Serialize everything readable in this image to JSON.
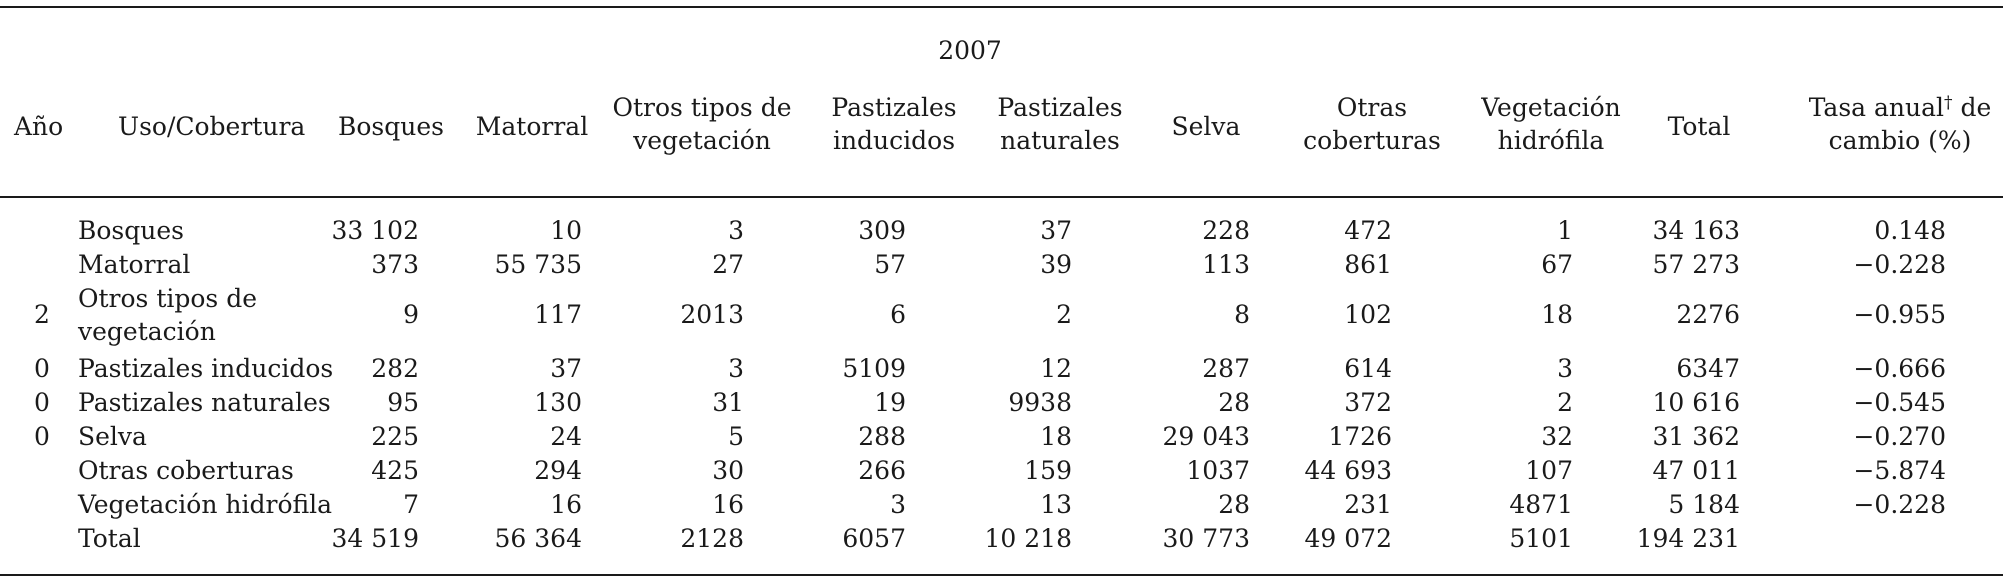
{
  "year_header": "2007",
  "header": {
    "ano": "Año",
    "uso": "Uso/Cobertura",
    "cols": [
      [
        "Bosques",
        ""
      ],
      [
        "Matorral",
        ""
      ],
      [
        "Otros tipos de",
        "vegetación"
      ],
      [
        "Pastizales",
        "inducidos"
      ],
      [
        "Pastizales",
        "naturales"
      ],
      [
        "Selva",
        ""
      ],
      [
        "Otras",
        "coberturas"
      ],
      [
        "Vegetación",
        "hidrófila"
      ],
      [
        "Total",
        ""
      ]
    ],
    "tasa_line1": "Tasa anual",
    "tasa_dagger": "†",
    "tasa_line1_suffix": " de",
    "tasa_line2": "cambio (%)"
  },
  "year_digits": [
    "2",
    "0",
    "0",
    "0"
  ],
  "rows": [
    {
      "label": [
        "Bosques"
      ],
      "values": [
        "33 102",
        "10",
        "3",
        "309",
        "37",
        "228",
        "472",
        "1",
        "34 163",
        "0.148"
      ]
    },
    {
      "label": [
        "Matorral"
      ],
      "values": [
        "373",
        "55 735",
        "27",
        "57",
        "39",
        "113",
        "861",
        "67",
        "57 273",
        "−0.228"
      ]
    },
    {
      "label": [
        "Otros tipos de",
        "vegetación"
      ],
      "values": [
        "9",
        "117",
        "2013",
        "6",
        "2",
        "8",
        "102",
        "18",
        "2276",
        "−0.955"
      ]
    },
    {
      "label": [
        "Pastizales inducidos"
      ],
      "values": [
        "282",
        "37",
        "3",
        "5109",
        "12",
        "287",
        "614",
        "3",
        "6347",
        "−0.666"
      ]
    },
    {
      "label": [
        "Pastizales naturales"
      ],
      "values": [
        "95",
        "130",
        "31",
        "19",
        "9938",
        "28",
        "372",
        "2",
        "10 616",
        "−0.545"
      ]
    },
    {
      "label": [
        "Selva"
      ],
      "values": [
        "225",
        "24",
        "5",
        "288",
        "18",
        "29 043",
        "1726",
        "32",
        "31 362",
        "−0.270"
      ]
    },
    {
      "label": [
        "Otras coberturas"
      ],
      "values": [
        "425",
        "294",
        "30",
        "266",
        "159",
        "1037",
        "44 693",
        "107",
        "47 011",
        "−5.874"
      ]
    },
    {
      "label": [
        "Vegetación hidrófila"
      ],
      "values": [
        "7",
        "16",
        "16",
        "3",
        "13",
        "28",
        "231",
        "4871",
        "5 184",
        "−0.228"
      ]
    },
    {
      "label": [
        "Total"
      ],
      "values": [
        "34 519",
        "56 364",
        "2128",
        "6057",
        "10 218",
        "30 773",
        "49 072",
        "5101",
        "194 231",
        ""
      ]
    }
  ]
}
